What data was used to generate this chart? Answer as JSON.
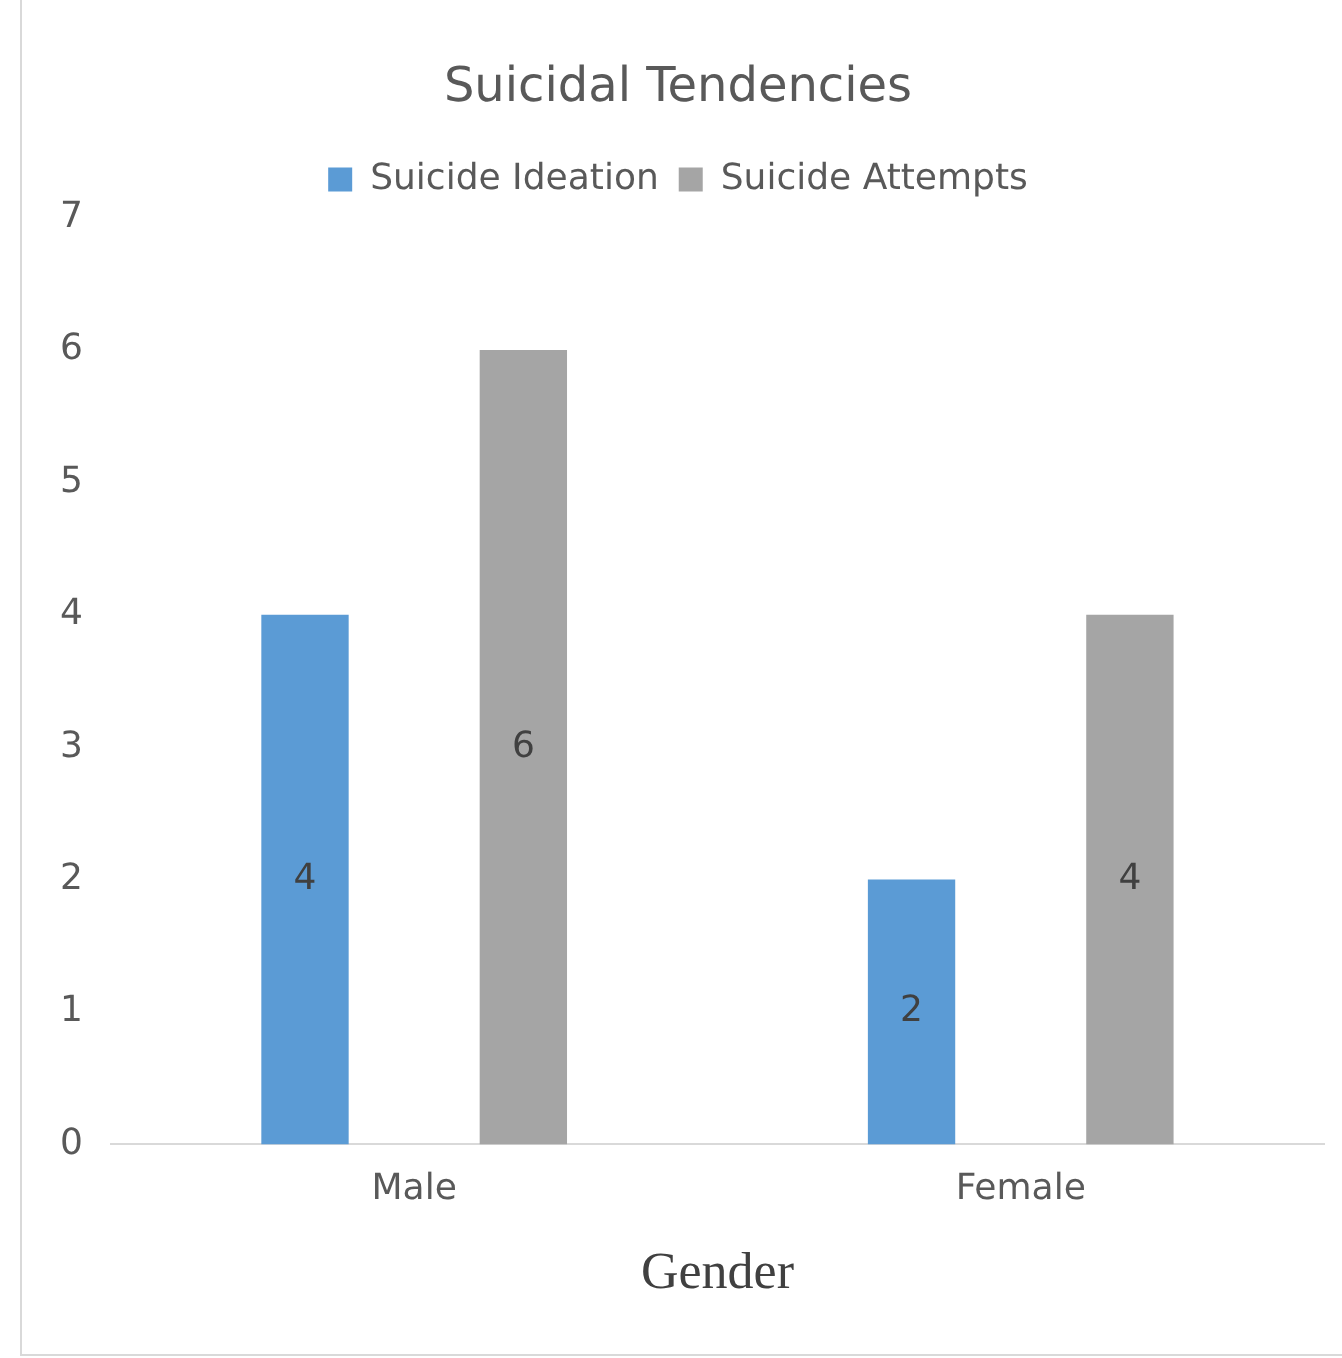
{
  "chart_data": {
    "type": "bar",
    "title": "Suicidal Tendencies",
    "xlabel": "Gender",
    "categories": [
      "Male",
      "Female"
    ],
    "series": [
      {
        "name": "Suicide Ideation",
        "color": "#5b9bd5",
        "values": [
          4,
          2
        ]
      },
      {
        "name": "Suicide Attempts",
        "color": "#a5a5a5",
        "values": [
          6,
          4
        ]
      }
    ],
    "ylim": [
      0,
      7
    ],
    "yticks": [
      0,
      1,
      2,
      3,
      4,
      5,
      6,
      7
    ],
    "grid": false,
    "legend": "top",
    "data_labels": true
  }
}
